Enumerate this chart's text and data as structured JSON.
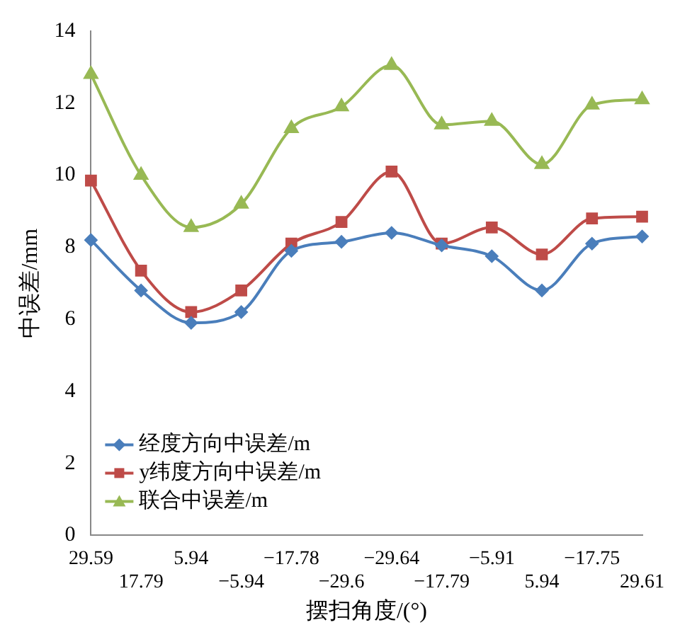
{
  "chart_data": {
    "type": "line",
    "xlabel": "摆扫角度/(°)",
    "ylabel": "中误差/mm",
    "categories": [
      "29.59",
      "17.79",
      "5.94",
      "−5.94",
      "−17.78",
      "−29.6",
      "−29.64",
      "−17.79",
      "−5.91",
      "5.94",
      "−17.75",
      "29.61"
    ],
    "series": [
      {
        "name": "经度方向中误差/m",
        "color": "#4a7ebb",
        "marker": "diamond",
        "values": [
          8.2,
          6.8,
          5.9,
          6.2,
          7.9,
          8.15,
          8.4,
          8.05,
          7.75,
          6.8,
          8.1,
          8.3
        ]
      },
      {
        "name": "y纬度方向中误差/m",
        "color": "#be4b48",
        "marker": "square",
        "values": [
          9.85,
          7.35,
          6.2,
          6.8,
          8.1,
          8.7,
          10.1,
          8.1,
          8.55,
          7.8,
          8.8,
          8.85
        ]
      },
      {
        "name": "联合中误差/m",
        "color": "#98b954",
        "marker": "triangle",
        "values": [
          12.8,
          10.0,
          8.55,
          9.2,
          11.3,
          11.9,
          13.05,
          11.4,
          11.5,
          10.3,
          11.95,
          12.1
        ]
      }
    ],
    "ylim": [
      0,
      14
    ],
    "yticks": [
      0,
      2,
      4,
      6,
      8,
      10,
      12,
      14
    ],
    "grid": false,
    "legend": "bottom left",
    "line_style": "solid"
  }
}
